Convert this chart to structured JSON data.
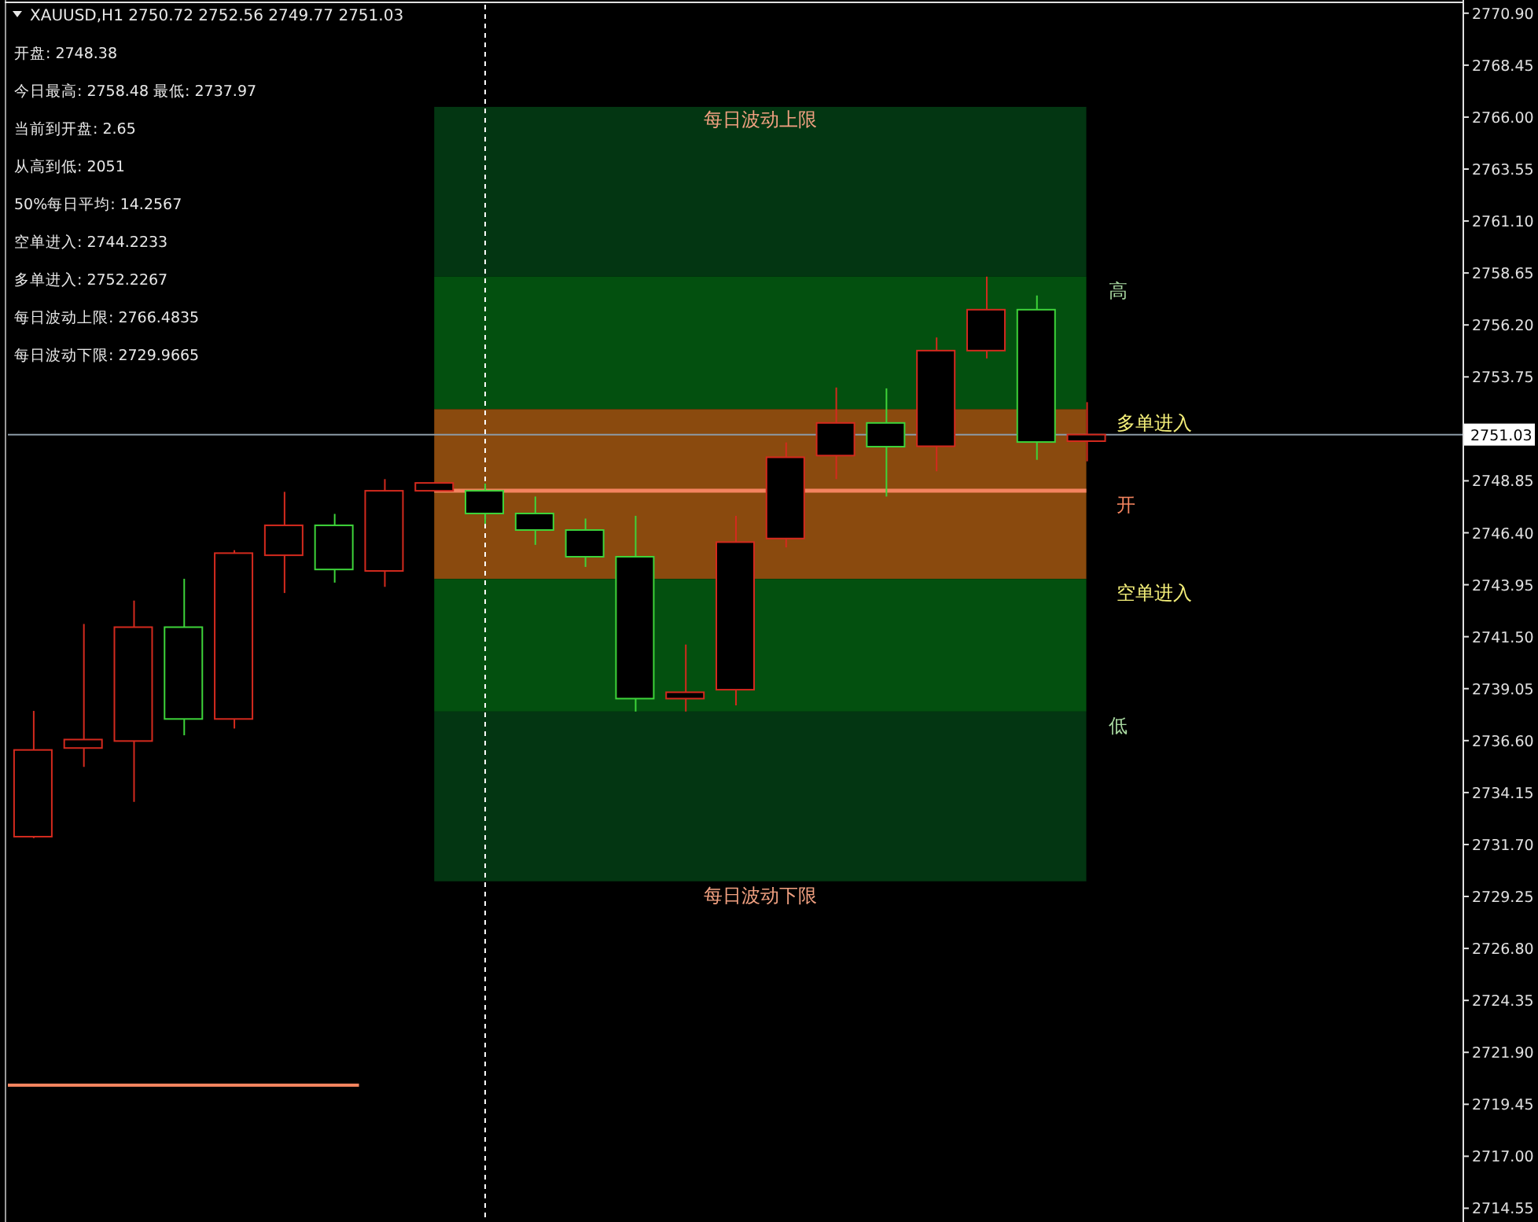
{
  "chart_data": {
    "type": "candlestick",
    "title": "XAUUSD,H1  2750.72 2752.56 2749.77 2751.03",
    "categories": [
      null,
      null,
      null,
      null,
      null,
      null,
      null,
      null,
      null,
      null,
      null,
      null,
      null,
      null,
      null,
      null,
      null,
      null,
      null,
      null,
      null,
      null,
      null,
      null,
      null,
      null,
      null,
      null,
      null
    ],
    "ohlc": [
      [
        2732.07,
        2738.0,
        2732.0,
        2736.16
      ],
      [
        2736.25,
        2742.1,
        2735.36,
        2736.65
      ],
      [
        2736.58,
        2743.2,
        2733.71,
        2741.95
      ],
      [
        2741.95,
        2744.23,
        2736.85,
        2737.62
      ],
      [
        2737.62,
        2745.58,
        2737.17,
        2745.44
      ],
      [
        2745.34,
        2748.33,
        2743.56,
        2746.75
      ],
      [
        2746.75,
        2747.29,
        2744.05,
        2744.67
      ],
      [
        2744.6,
        2748.93,
        2743.85,
        2748.38
      ],
      [
        2748.38,
        2748.8,
        2748.38,
        2748.75
      ],
      [
        2748.38,
        2748.72,
        2746.82,
        2747.31
      ],
      [
        2747.31,
        2748.11,
        2745.83,
        2746.53
      ],
      [
        2746.53,
        2747.07,
        2744.79,
        2745.27
      ],
      [
        2745.27,
        2747.2,
        2737.97,
        2738.58
      ],
      [
        2738.58,
        2741.13,
        2737.97,
        2738.88
      ],
      [
        2739.0,
        2747.2,
        2738.26,
        2745.96
      ],
      [
        2746.13,
        2750.66,
        2745.71,
        2749.96
      ],
      [
        2750.04,
        2753.25,
        2748.93,
        2751.58
      ],
      [
        2751.58,
        2753.21,
        2748.11,
        2750.46
      ],
      [
        2750.48,
        2755.61,
        2749.3,
        2754.99
      ],
      [
        2754.99,
        2758.48,
        2754.62,
        2756.92
      ],
      [
        2756.92,
        2757.59,
        2749.84,
        2750.68
      ],
      [
        2750.72,
        2752.56,
        2749.77,
        2751.03
      ],
      null,
      null,
      null,
      null,
      null,
      null,
      null
    ],
    "colors": [
      "#d42a1e",
      "#d42a1e",
      "#d42a1e",
      "#3ed43a",
      "#d42a1e",
      "#d42a1e",
      "#3ed43a",
      "#d42a1e",
      "#d42a1e",
      "#3ed43a",
      "#3ed43a",
      "#3ed43a",
      "#3ed43a",
      "#d42a1e",
      "#d42a1e",
      "#d42a1e",
      "#d42a1e",
      "#3ed43a",
      "#d42a1e",
      "#d42a1e",
      "#3ed43a",
      "#d42a1e",
      null,
      null,
      null,
      null,
      null,
      null,
      null
    ],
    "ylim": [
      2713.9,
      2771.3
    ],
    "yticks": [
      {
        "value": 2770.9,
        "label": "2770.90"
      },
      {
        "value": 2768.45,
        "label": "2768.45"
      },
      {
        "value": 2766.0,
        "label": "2766.00"
      },
      {
        "value": 2763.55,
        "label": "2763.55"
      },
      {
        "value": 2761.1,
        "label": "2761.10"
      },
      {
        "value": 2758.65,
        "label": "2758.65"
      },
      {
        "value": 2756.2,
        "label": "2756.20"
      },
      {
        "value": 2753.75,
        "label": "2753.75"
      },
      {
        "value": 2748.85,
        "label": "2748.85"
      },
      {
        "value": 2746.4,
        "label": "2746.40"
      },
      {
        "value": 2743.95,
        "label": "2743.95"
      },
      {
        "value": 2741.5,
        "label": "2741.50"
      },
      {
        "value": 2739.05,
        "label": "2739.05"
      },
      {
        "value": 2736.6,
        "label": "2736.60"
      },
      {
        "value": 2734.15,
        "label": "2734.15"
      },
      {
        "value": 2731.7,
        "label": "2731.70"
      },
      {
        "value": 2729.25,
        "label": "2729.25"
      },
      {
        "value": 2726.8,
        "label": "2726.80"
      },
      {
        "value": 2724.35,
        "label": "2724.35"
      },
      {
        "value": 2721.9,
        "label": "2721.90"
      },
      {
        "value": 2719.45,
        "label": "2719.45"
      },
      {
        "value": 2717.0,
        "label": "2717.00"
      },
      {
        "value": 2714.55,
        "label": "2714.55"
      }
    ],
    "bands": [
      {
        "axis": "y",
        "from": 2758.48,
        "to": 2766.4835,
        "label": "每日波动上限",
        "color": "#033612"
      },
      {
        "axis": "y",
        "from": 2752.2267,
        "to": 2758.48,
        "color": "#03500f"
      },
      {
        "axis": "y",
        "from": 2744.2233,
        "to": 2752.2267,
        "color": "#8a4a0e"
      },
      {
        "axis": "y",
        "from": 2737.97,
        "to": 2744.2233,
        "color": "#03500f"
      },
      {
        "axis": "y",
        "from": 2729.9665,
        "to": 2737.97,
        "label": "每日波动下限",
        "color": "#033612"
      }
    ],
    "ref_lines": [
      {
        "axis": "y",
        "value": 2748.38,
        "label": "开",
        "color": "#f4845f"
      },
      {
        "axis": "y",
        "value": 2751.03,
        "label": "2751.03",
        "color": "#8c9aa6"
      },
      {
        "axis": "y",
        "value": 2720.35,
        "color": "#f4845f"
      }
    ],
    "annotations": [
      "开盘: 2748.38",
      "今日最高: 2758.48  最低: 2737.97",
      "当前到开盘: 2.65",
      "从高到低: 2051",
      "50%每日平均: 14.2567",
      "空单进入: 2744.2233",
      "多单进入: 2752.2267",
      "每日波动上限: 2766.4835",
      "每日波动下限: 2729.9665",
      "高",
      "多单进入",
      "空单进入",
      "低"
    ]
  }
}
